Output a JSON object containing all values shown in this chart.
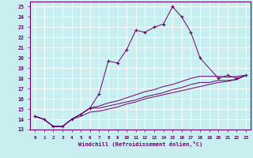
{
  "xlabel": "Windchill (Refroidissement éolien,°C)",
  "bg_color": "#c8eef0",
  "line_color": "#6b006b",
  "xlim": [
    -0.5,
    23.5
  ],
  "ylim": [
    13,
    25.5
  ],
  "xticks": [
    0,
    1,
    2,
    3,
    4,
    5,
    6,
    7,
    8,
    9,
    10,
    11,
    12,
    13,
    14,
    15,
    16,
    17,
    18,
    19,
    20,
    21,
    22,
    23
  ],
  "yticks": [
    13,
    14,
    15,
    16,
    17,
    18,
    19,
    20,
    21,
    22,
    23,
    24,
    25
  ],
  "lines": [
    {
      "x": [
        0,
        1,
        2,
        3,
        4,
        5,
        6,
        7,
        8,
        9,
        10,
        11,
        12,
        13,
        14,
        15,
        16,
        17,
        18,
        20,
        21,
        22,
        23
      ],
      "y": [
        14.3,
        14.0,
        13.3,
        13.3,
        14.0,
        14.5,
        15.1,
        16.5,
        19.7,
        19.5,
        20.8,
        22.7,
        22.5,
        23.0,
        23.3,
        25.0,
        24.0,
        22.5,
        20.0,
        18.0,
        18.3,
        18.0,
        18.3
      ],
      "marker": "+"
    },
    {
      "x": [
        0,
        1,
        2,
        3,
        4,
        5,
        6,
        7,
        8,
        9,
        10,
        11,
        12,
        13,
        14,
        15,
        16,
        17,
        18,
        19,
        20,
        21,
        22,
        23
      ],
      "y": [
        14.3,
        14.0,
        13.3,
        13.3,
        14.0,
        14.5,
        15.1,
        15.3,
        15.6,
        15.8,
        16.1,
        16.4,
        16.7,
        16.9,
        17.2,
        17.4,
        17.7,
        18.0,
        18.2,
        18.2,
        18.2,
        18.1,
        18.2,
        18.3
      ],
      "marker": null
    },
    {
      "x": [
        0,
        1,
        2,
        3,
        4,
        5,
        6,
        7,
        8,
        9,
        10,
        11,
        12,
        13,
        14,
        15,
        16,
        17,
        18,
        19,
        20,
        21,
        22,
        23
      ],
      "y": [
        14.3,
        14.0,
        13.3,
        13.3,
        14.0,
        14.5,
        15.1,
        15.1,
        15.3,
        15.5,
        15.7,
        15.9,
        16.2,
        16.4,
        16.6,
        16.9,
        17.1,
        17.4,
        17.6,
        17.6,
        17.8,
        17.8,
        17.9,
        18.3
      ],
      "marker": null
    },
    {
      "x": [
        0,
        1,
        2,
        3,
        4,
        5,
        6,
        7,
        8,
        9,
        10,
        11,
        12,
        13,
        14,
        15,
        16,
        17,
        18,
        19,
        20,
        21,
        22,
        23
      ],
      "y": [
        14.3,
        14.0,
        13.3,
        13.3,
        14.0,
        14.3,
        14.7,
        14.8,
        15.0,
        15.2,
        15.5,
        15.7,
        16.0,
        16.2,
        16.4,
        16.6,
        16.8,
        17.0,
        17.2,
        17.4,
        17.6,
        17.7,
        17.9,
        18.3
      ],
      "marker": null
    }
  ]
}
